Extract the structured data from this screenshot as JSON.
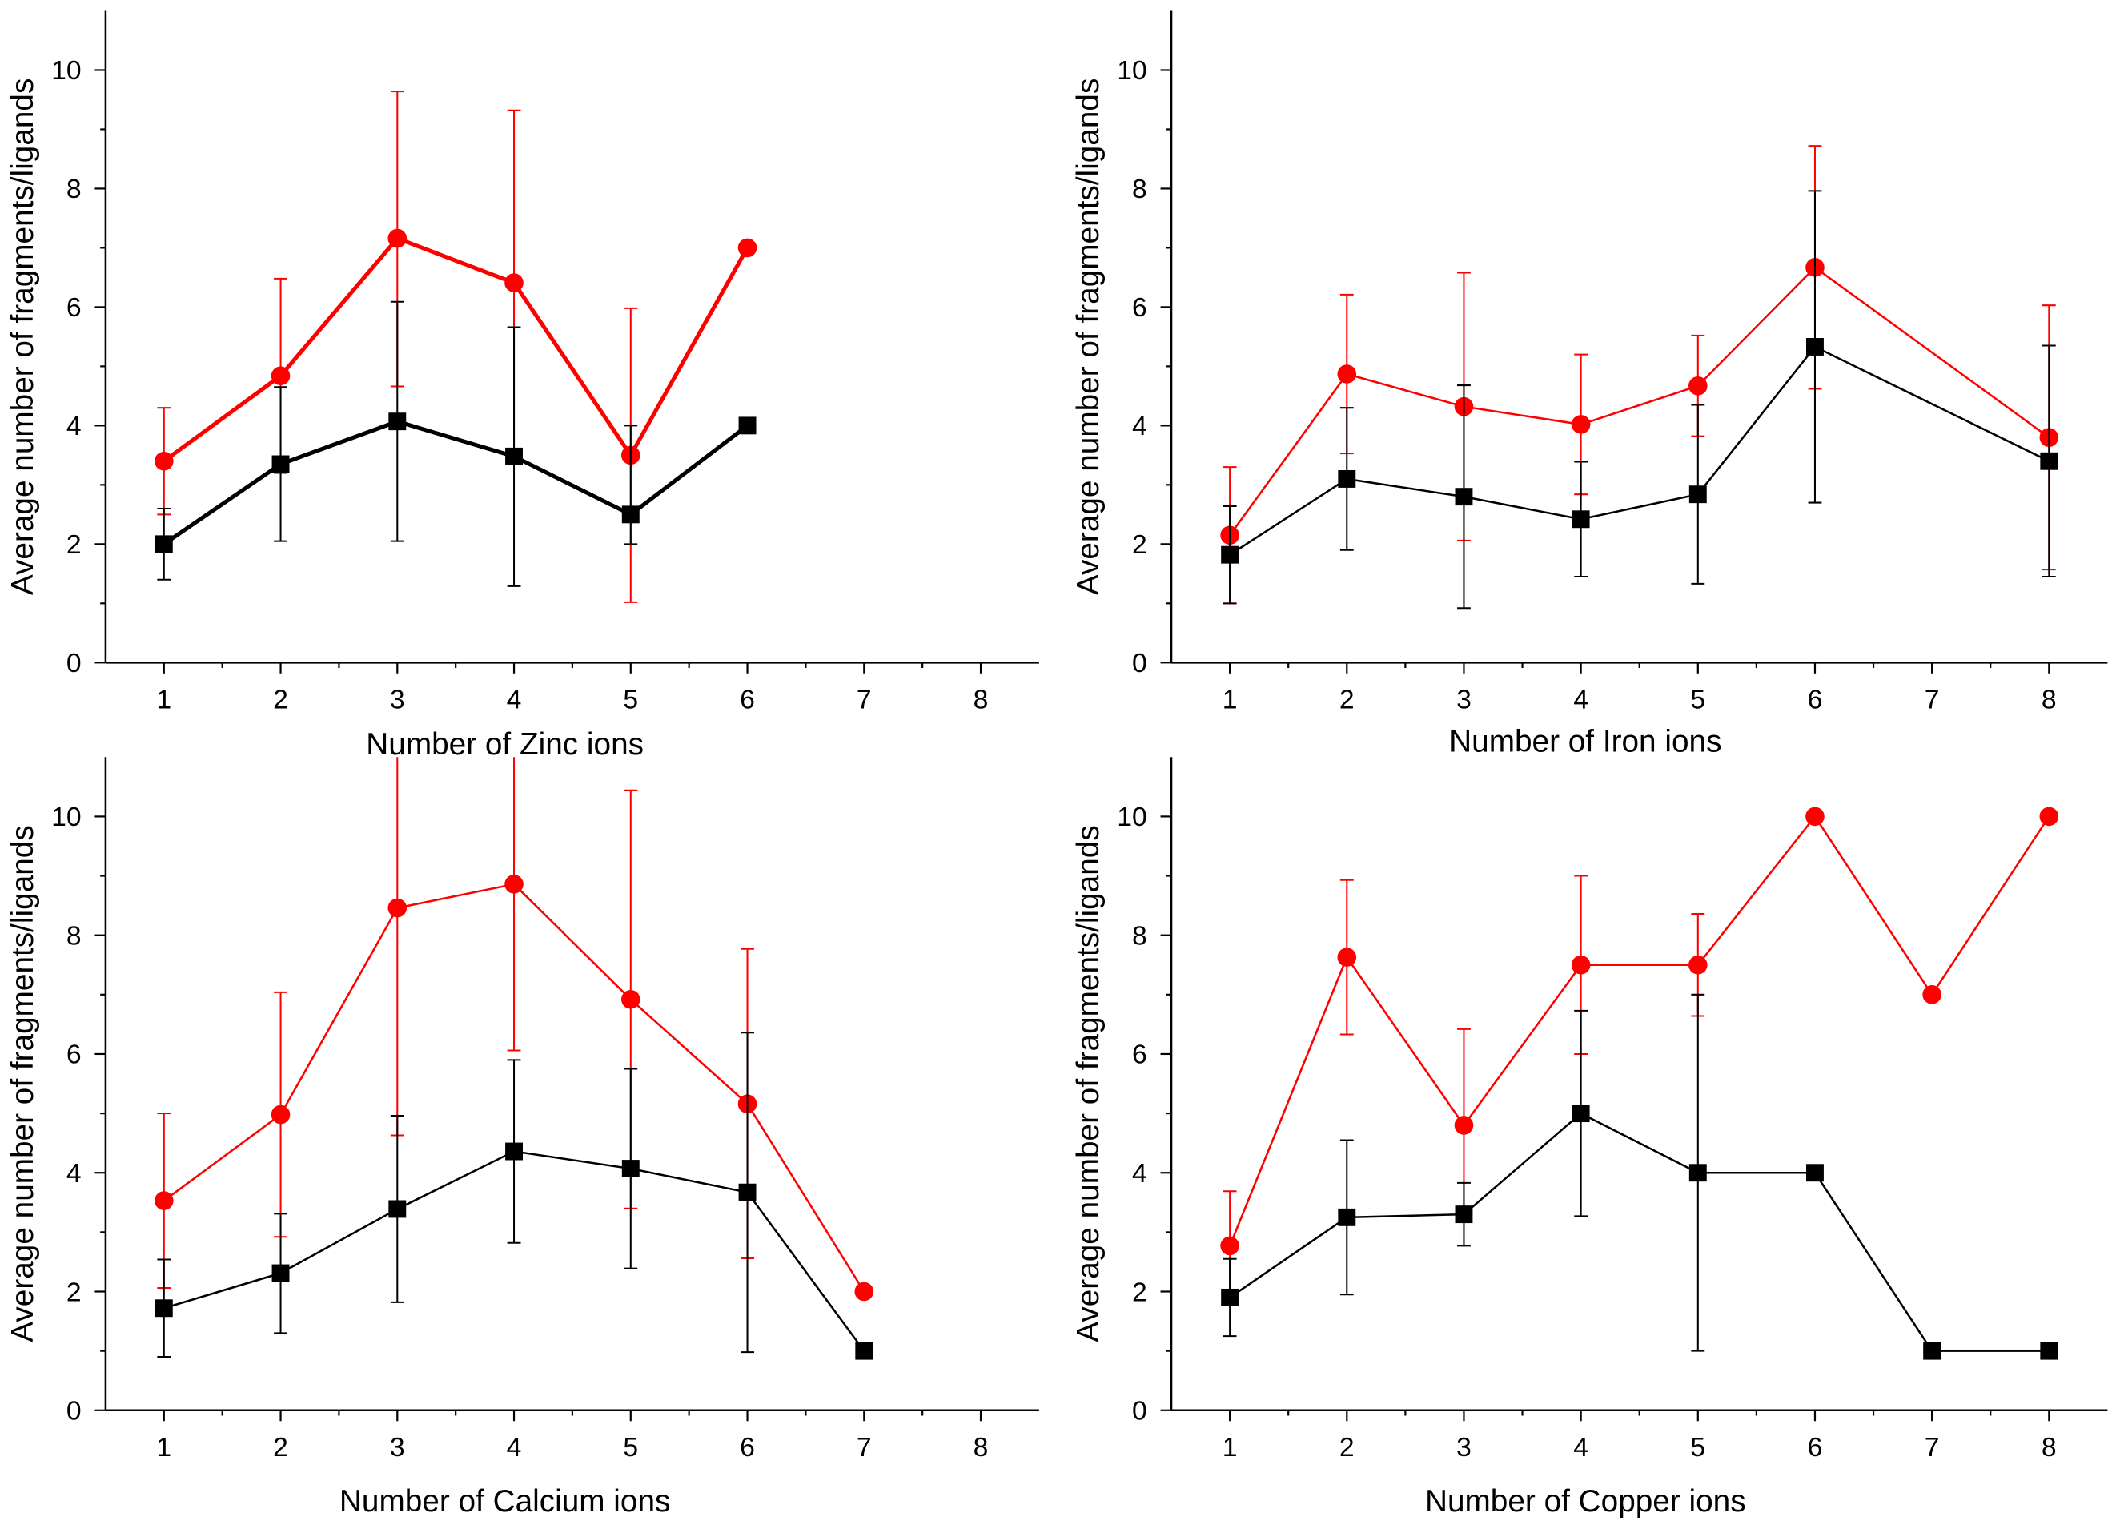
{
  "chart_data": [
    {
      "type": "line",
      "xlabel": "Number of Zinc ions",
      "ylabel": "Average number of fragments/ligands",
      "xlim": [
        0.5,
        8.5
      ],
      "ylim": [
        0,
        11
      ],
      "xticks": [
        "1",
        "2",
        "3",
        "4",
        "5",
        "6",
        "7",
        "8"
      ],
      "yticks": [
        "0",
        "2",
        "4",
        "6",
        "8",
        "10"
      ],
      "line_style": "thick",
      "series": [
        {
          "name": "red-circles",
          "color": "#ff0000",
          "marker": "circle",
          "x": [
            1,
            2,
            3,
            4,
            5,
            6
          ],
          "y": [
            3.4,
            4.84,
            7.16,
            6.41,
            3.5,
            7.0
          ],
          "err_low": [
            2.5,
            3.2,
            4.66,
            3.5,
            1.02,
            null
          ],
          "err_high": [
            4.3,
            6.48,
            9.64,
            9.32,
            5.98,
            null
          ]
        },
        {
          "name": "black-squares",
          "color": "#000000",
          "marker": "square",
          "x": [
            1,
            2,
            3,
            4,
            5,
            6
          ],
          "y": [
            2.0,
            3.35,
            4.07,
            3.48,
            2.5,
            4.0
          ],
          "err_low": [
            1.4,
            2.05,
            2.05,
            1.29,
            2.0,
            null
          ],
          "err_high": [
            2.6,
            4.65,
            6.09,
            5.66,
            4.0,
            null
          ]
        }
      ]
    },
    {
      "type": "line",
      "xlabel": "Number of Iron ions",
      "ylabel": "Average number of fragments/ligands",
      "xlim": [
        0.5,
        8.5
      ],
      "ylim": [
        0,
        11
      ],
      "xticks": [
        "1",
        "2",
        "3",
        "4",
        "5",
        "6",
        "7",
        "8"
      ],
      "yticks": [
        "0",
        "2",
        "4",
        "6",
        "8",
        "10"
      ],
      "line_style": "thin",
      "series": [
        {
          "name": "red-circles",
          "color": "#ff0000",
          "marker": "circle",
          "x": [
            1,
            2,
            3,
            4,
            5,
            6,
            8
          ],
          "y": [
            2.15,
            4.87,
            4.32,
            4.02,
            4.67,
            6.67,
            3.8
          ],
          "err_low": [
            1.0,
            3.53,
            2.06,
            2.84,
            3.82,
            4.62,
            1.57
          ],
          "err_high": [
            3.3,
            6.21,
            6.58,
            5.2,
            5.52,
            8.72,
            6.03
          ]
        },
        {
          "name": "black-squares",
          "color": "#000000",
          "marker": "square",
          "x": [
            1,
            2,
            3,
            4,
            5,
            6,
            8
          ],
          "y": [
            1.82,
            3.1,
            2.8,
            2.42,
            2.84,
            5.33,
            3.4
          ],
          "err_low": [
            1.0,
            1.9,
            0.92,
            1.45,
            1.33,
            2.7,
            1.45
          ],
          "err_high": [
            2.64,
            4.3,
            4.68,
            3.39,
            4.35,
            7.96,
            5.35
          ]
        }
      ]
    },
    {
      "type": "line",
      "xlabel": "Number of Calcium ions",
      "ylabel": "Average number of fragments/ligands",
      "xlim": [
        0.5,
        8.5
      ],
      "ylim": [
        0,
        11
      ],
      "xticks": [
        "1",
        "2",
        "3",
        "4",
        "5",
        "6",
        "7",
        "8"
      ],
      "yticks": [
        "0",
        "2",
        "4",
        "6",
        "8",
        "10"
      ],
      "line_style": "thin",
      "series": [
        {
          "name": "red-circles",
          "color": "#ff0000",
          "marker": "circle",
          "x": [
            1,
            2,
            3,
            4,
            5,
            6,
            7
          ],
          "y": [
            3.53,
            4.98,
            8.46,
            8.86,
            6.92,
            5.16,
            2.0
          ],
          "err_low": [
            2.06,
            2.92,
            4.63,
            6.06,
            3.4,
            2.56,
            null
          ],
          "err_high": [
            5.0,
            7.04,
            12.3,
            11.66,
            10.44,
            7.77,
            null
          ]
        },
        {
          "name": "black-squares",
          "color": "#000000",
          "marker": "square",
          "x": [
            1,
            2,
            3,
            4,
            5,
            6,
            7
          ],
          "y": [
            1.72,
            2.31,
            3.39,
            4.36,
            4.07,
            3.67,
            1.0
          ],
          "err_low": [
            0.9,
            1.3,
            1.82,
            2.82,
            2.39,
            0.98,
            null
          ],
          "err_high": [
            2.54,
            3.31,
            4.96,
            5.9,
            5.75,
            6.36,
            null
          ]
        }
      ]
    },
    {
      "type": "line",
      "xlabel": "Number of Copper ions",
      "ylabel": "Average number of fragments/ligands",
      "xlim": [
        0.5,
        8.5
      ],
      "ylim": [
        0,
        11
      ],
      "xticks": [
        "1",
        "2",
        "3",
        "4",
        "5",
        "6",
        "7",
        "8"
      ],
      "yticks": [
        "0",
        "2",
        "4",
        "6",
        "8",
        "10"
      ],
      "line_style": "thin",
      "series": [
        {
          "name": "red-circles",
          "color": "#ff0000",
          "marker": "circle",
          "x": [
            1,
            2,
            3,
            4,
            5,
            6,
            7,
            8
          ],
          "y": [
            2.77,
            7.63,
            4.8,
            7.5,
            7.5,
            10,
            7,
            10
          ],
          "err_low": [
            1.85,
            6.33,
            3.2,
            6.0,
            6.64,
            null,
            null,
            null
          ],
          "err_high": [
            3.69,
            8.93,
            6.42,
            9.0,
            8.36,
            null,
            null,
            null
          ]
        },
        {
          "name": "black-squares",
          "color": "#000000",
          "marker": "square",
          "x": [
            1,
            2,
            3,
            4,
            5,
            6,
            7,
            8
          ],
          "y": [
            1.9,
            3.25,
            3.3,
            5.0,
            4.0,
            4,
            1,
            1
          ],
          "err_low": [
            1.25,
            1.95,
            2.77,
            3.27,
            1.0,
            null,
            null,
            null
          ],
          "err_high": [
            2.55,
            4.55,
            3.83,
            6.73,
            7.0,
            null,
            null,
            null
          ]
        }
      ]
    }
  ]
}
